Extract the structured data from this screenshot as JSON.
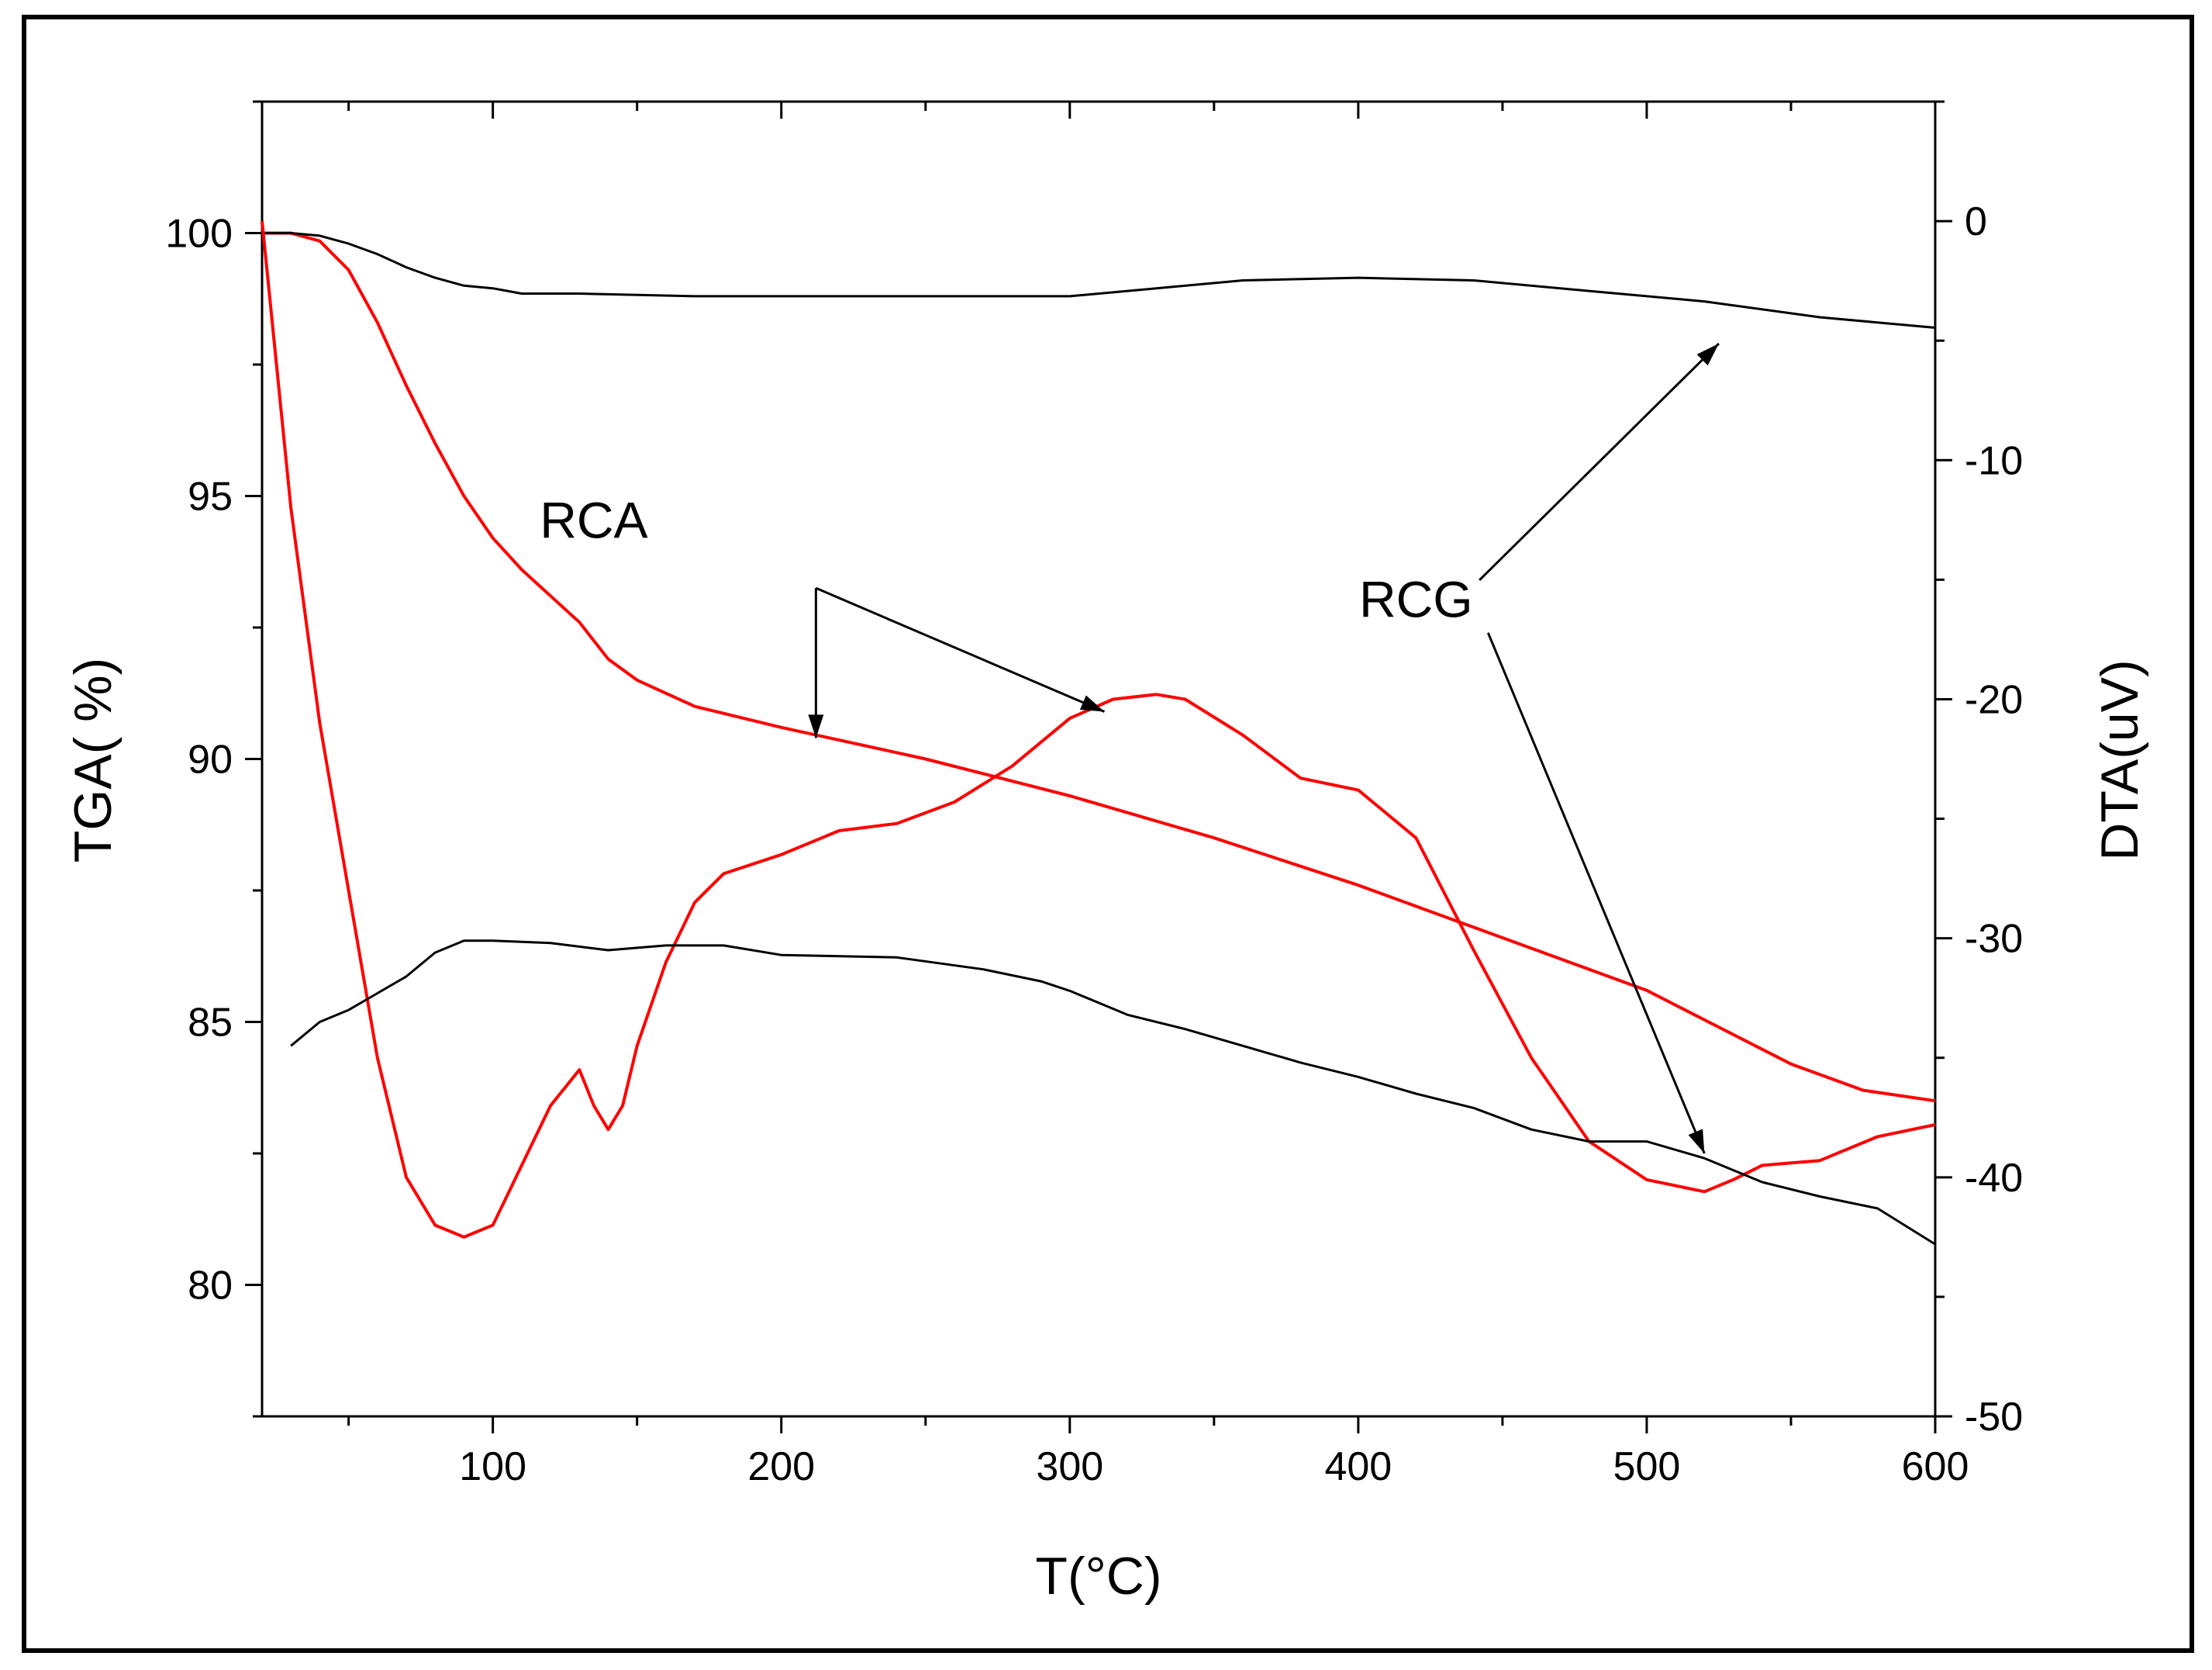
{
  "chart_data": {
    "type": "line",
    "title": "",
    "xlabel": "T(°C)",
    "ylabel_left": "TGA( %)",
    "ylabel_right": "DTA(uV)",
    "xlim": [
      20,
      600
    ],
    "ylim_left": [
      77.5,
      102.5
    ],
    "ylim_right": [
      -50,
      5
    ],
    "grid": false,
    "legend": "none",
    "x_ticks": [
      100,
      200,
      300,
      400,
      500,
      600
    ],
    "x_tick_labels": [
      "100",
      "200",
      "300",
      "400",
      "500",
      "600"
    ],
    "y_left_ticks": [
      80,
      85,
      90,
      95,
      100
    ],
    "y_left_tick_labels": [
      "80",
      "85",
      "90",
      "95",
      "100"
    ],
    "y_right_ticks": [
      0,
      -10,
      -20,
      -30,
      -40,
      -50
    ],
    "y_right_tick_labels": [
      "0",
      "-10",
      "-20",
      "-30",
      "-40",
      "-50"
    ],
    "series": [
      {
        "name": "RCA TGA",
        "axis": "left",
        "color": "#ff0000",
        "x": [
          20,
          30,
          40,
          50,
          60,
          70,
          80,
          90,
          100,
          110,
          120,
          130,
          140,
          150,
          170,
          200,
          250,
          300,
          350,
          400,
          450,
          500,
          550,
          575,
          600
        ],
        "y": [
          100,
          100,
          99.85,
          99.3,
          98.3,
          97.1,
          96.0,
          95.0,
          94.2,
          93.6,
          93.1,
          92.6,
          91.9,
          91.5,
          91.0,
          90.6,
          90.0,
          89.3,
          88.5,
          87.6,
          86.6,
          85.6,
          84.2,
          83.7,
          83.5
        ]
      },
      {
        "name": "RCG TGA",
        "axis": "left",
        "color": "#000000",
        "x": [
          20,
          30,
          40,
          50,
          60,
          70,
          80,
          90,
          100,
          110,
          130,
          170,
          200,
          250,
          300,
          330,
          360,
          400,
          440,
          480,
          520,
          560,
          600
        ],
        "y": [
          100,
          100,
          99.95,
          99.8,
          99.6,
          99.35,
          99.15,
          99.0,
          98.95,
          98.85,
          98.85,
          98.8,
          98.8,
          98.8,
          98.8,
          98.95,
          99.1,
          99.15,
          99.1,
          98.9,
          98.7,
          98.4,
          98.2
        ]
      },
      {
        "name": "RCA DTA",
        "axis": "right",
        "color": "#ff0000",
        "x": [
          20,
          25,
          30,
          40,
          50,
          60,
          70,
          80,
          90,
          100,
          110,
          120,
          130,
          135,
          140,
          145,
          150,
          160,
          170,
          180,
          200,
          220,
          240,
          260,
          280,
          300,
          315,
          330,
          340,
          360,
          380,
          400,
          420,
          440,
          460,
          480,
          500,
          520,
          530,
          540,
          560,
          580,
          600
        ],
        "y": [
          0,
          -6,
          -12,
          -21,
          -28,
          -35,
          -40,
          -42,
          -42.5,
          -42,
          -39.5,
          -37,
          -35.5,
          -37,
          -38,
          -37,
          -34.5,
          -31,
          -28.5,
          -27.3,
          -26.5,
          -25.5,
          -25.2,
          -24.3,
          -22.8,
          -20.8,
          -20,
          -19.8,
          -20,
          -21.5,
          -23.3,
          -23.8,
          -25.8,
          -30.5,
          -35,
          -38.5,
          -40.1,
          -40.6,
          -40.1,
          -39.5,
          -39.3,
          -38.3,
          -37.8
        ]
      },
      {
        "name": "RCG DTA",
        "axis": "right",
        "color": "#000000",
        "x": [
          30,
          40,
          50,
          60,
          70,
          80,
          90,
          100,
          120,
          140,
          160,
          180,
          200,
          240,
          270,
          290,
          300,
          320,
          340,
          360,
          380,
          400,
          420,
          440,
          460,
          480,
          500,
          520,
          540,
          560,
          580,
          600
        ],
        "y": [
          -34.5,
          -33.5,
          -33,
          -32.3,
          -31.6,
          -30.6,
          -30.1,
          -30.1,
          -30.2,
          -30.5,
          -30.3,
          -30.3,
          -30.7,
          -30.8,
          -31.3,
          -31.8,
          -32.2,
          -33.2,
          -33.8,
          -34.5,
          -35.2,
          -35.8,
          -36.5,
          -37.1,
          -38,
          -38.5,
          -38.5,
          -39.2,
          -40.2,
          -40.8,
          -41.3,
          -42.8
        ]
      }
    ],
    "annotations": [
      {
        "text": "RCA",
        "x": 135,
        "y_left": 94.2
      },
      {
        "text": "RCG",
        "x": 420,
        "y_left": 92.7
      }
    ],
    "arrows": [
      {
        "from": "RCA",
        "bend_x": 212,
        "bend_y_left": 93.25,
        "to_x": 212,
        "to_y_left": 90.4
      },
      {
        "from": "RCA",
        "bend_x": 212,
        "bend_y_left": 93.25,
        "to_x": 312,
        "to_y_left": 90.9
      },
      {
        "from": "RCG",
        "from_x": 442,
        "from_y_left": 93.4,
        "to_x": 525,
        "to_y_left": 97.9
      },
      {
        "from": "RCG",
        "from_x": 445,
        "from_y_left": 92.4,
        "to_x": 520,
        "to_y_left": 82.5
      }
    ]
  }
}
